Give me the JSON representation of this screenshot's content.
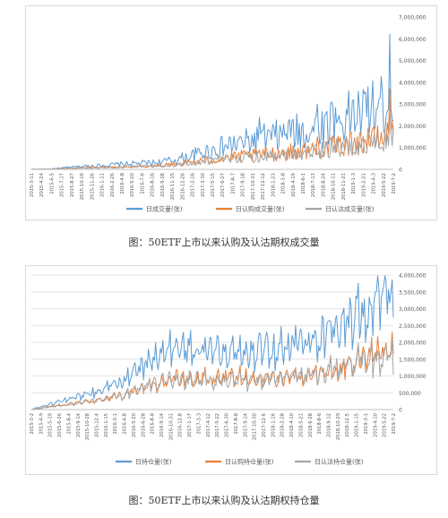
{
  "charts": [
    {
      "type": "line",
      "caption": "图：50ETF上市以来认购及认沽期权成交量",
      "x_ticks": [
        "2015-3-11",
        "2015-4-24",
        "2015-6-5",
        "2015-7-17",
        "2015-8-27",
        "2015-10-16",
        "2015-11-26",
        "2016-1-11",
        "2016-2-26",
        "2016-4-8",
        "2016-5-20",
        "2016-7-6",
        "2016-8-16",
        "2016-9-28",
        "2016-11-15",
        "2016-12-26",
        "2017-2-16",
        "2017-3-30",
        "2017-5-15",
        "2017-6-27",
        "2017-8-7",
        "2017-9-18",
        "2017-10-31",
        "2017-12-12",
        "2018-1-23",
        "2018-3-8",
        "2018-4-19",
        "2018-6-1",
        "2018-7-13",
        "2018-8-24",
        "2018-10-11",
        "2018-11-21",
        "2019-1-3",
        "2019-2-21",
        "2019-4-3",
        "2019-5-22",
        "2019-7-2"
      ],
      "y_ticks": [
        "0",
        "1,000,000",
        "2,000,000",
        "3,000,000",
        "4,000,000",
        "5,000,000",
        "6,000,000",
        "7,000,000"
      ],
      "ylim": [
        0,
        7000000
      ],
      "series": [
        {
          "name": "日成交量(张)",
          "color": "#5b9bd5",
          "anchors": [
            [
              0,
              5000
            ],
            [
              0.05,
              20000
            ],
            [
              0.1,
              80000
            ],
            [
              0.15,
              140000
            ],
            [
              0.2,
              180000
            ],
            [
              0.25,
              220000
            ],
            [
              0.3,
              260000
            ],
            [
              0.35,
              300000
            ],
            [
              0.4,
              420000
            ],
            [
              0.45,
              620000
            ],
            [
              0.5,
              850000
            ],
            [
              0.55,
              1050000
            ],
            [
              0.6,
              1200000
            ],
            [
              0.65,
              1350000
            ],
            [
              0.7,
              1500000
            ],
            [
              0.75,
              1650000
            ],
            [
              0.8,
              1850000
            ],
            [
              0.85,
              2150000
            ],
            [
              0.9,
              2350000
            ],
            [
              0.95,
              2600000
            ],
            [
              1,
              3000000
            ]
          ],
          "spikes": [
            [
              0.63,
              2400000
            ],
            [
              0.71,
              2200000
            ],
            [
              0.79,
              3000000
            ],
            [
              0.83,
              3100000
            ],
            [
              0.89,
              3200000
            ],
            [
              0.93,
              3800000
            ],
            [
              0.97,
              3500000
            ],
            [
              0.99,
              6200000
            ]
          ],
          "amp": 0.55
        },
        {
          "name": "日认购成交量(张)",
          "color": "#ed7d31",
          "anchors": [
            [
              0,
              3000
            ],
            [
              0.05,
              10000
            ],
            [
              0.1,
              40000
            ],
            [
              0.15,
              80000
            ],
            [
              0.2,
              100000
            ],
            [
              0.25,
              120000
            ],
            [
              0.3,
              140000
            ],
            [
              0.35,
              170000
            ],
            [
              0.4,
              240000
            ],
            [
              0.45,
              330000
            ],
            [
              0.5,
              420000
            ],
            [
              0.55,
              520000
            ],
            [
              0.6,
              600000
            ],
            [
              0.65,
              680000
            ],
            [
              0.7,
              740000
            ],
            [
              0.75,
              820000
            ],
            [
              0.8,
              900000
            ],
            [
              0.85,
              1050000
            ],
            [
              0.9,
              1150000
            ],
            [
              0.95,
              1300000
            ],
            [
              1,
              1500000
            ]
          ],
          "spikes": [
            [
              0.79,
              1500000
            ],
            [
              0.93,
              1900000
            ],
            [
              0.99,
              3700000
            ]
          ],
          "amp": 0.5
        },
        {
          "name": "日认沽成交量(张)",
          "color": "#a5a5a5",
          "anchors": [
            [
              0,
              2000
            ],
            [
              0.05,
              10000
            ],
            [
              0.1,
              40000
            ],
            [
              0.15,
              60000
            ],
            [
              0.2,
              80000
            ],
            [
              0.25,
              100000
            ],
            [
              0.3,
              120000
            ],
            [
              0.35,
              140000
            ],
            [
              0.4,
              190000
            ],
            [
              0.45,
              280000
            ],
            [
              0.5,
              380000
            ],
            [
              0.55,
              470000
            ],
            [
              0.6,
              540000
            ],
            [
              0.65,
              620000
            ],
            [
              0.7,
              680000
            ],
            [
              0.75,
              750000
            ],
            [
              0.8,
              820000
            ],
            [
              0.85,
              950000
            ],
            [
              0.9,
              1050000
            ],
            [
              0.95,
              1150000
            ],
            [
              1,
              1300000
            ]
          ],
          "spikes": [
            [
              0.83,
              1500000
            ],
            [
              0.93,
              1700000
            ],
            [
              0.99,
              2500000
            ]
          ],
          "amp": 0.5
        }
      ]
    },
    {
      "type": "line",
      "caption": "图：50ETF上市以来认购及认沽期权持仓量",
      "x_ticks": [
        "2015-3-2",
        "2015-4-9",
        "2015-5-19",
        "2015-6-26",
        "2015-8-4",
        "2015-9-14",
        "2015-10-28",
        "2015-12-4",
        "2016-1-15",
        "2016-3-1",
        "2016-4-8",
        "2016-5-20",
        "2016-6-28",
        "2016-8-8",
        "2016-9-14",
        "2016-10-31",
        "2016-12-8",
        "2017-1-17",
        "2017-3-3",
        "2017-4-12",
        "2017-5-22",
        "2017-6-30",
        "2017-8-8",
        "2017-9-14",
        "2017-10-30",
        "2017-12-6",
        "2018-1-16",
        "2018-2-28",
        "2018-4-10",
        "2018-5-21",
        "2018-6-28",
        "2018-8-6",
        "2018-9-12",
        "2018-10-29",
        "2018-12-5",
        "2019-1-15",
        "2019-3-1",
        "2019-4-10",
        "2019-5-22",
        "2019-7-2"
      ],
      "y_ticks": [
        "0",
        "500,000",
        "1,000,000",
        "1,500,000",
        "2,000,000",
        "2,500,000",
        "3,000,000",
        "3,500,000",
        "4,000,000"
      ],
      "ylim": [
        0,
        4000000
      ],
      "series": [
        {
          "name": "日持仓量(张)",
          "color": "#5b9bd5",
          "anchors": [
            [
              0,
              5000
            ],
            [
              0.05,
              150000
            ],
            [
              0.1,
              300000
            ],
            [
              0.15,
              450000
            ],
            [
              0.2,
              600000
            ],
            [
              0.25,
              850000
            ],
            [
              0.3,
              1200000
            ],
            [
              0.35,
              1550000
            ],
            [
              0.4,
              1800000
            ],
            [
              0.45,
              1750000
            ],
            [
              0.5,
              1750000
            ],
            [
              0.55,
              1800000
            ],
            [
              0.6,
              1700000
            ],
            [
              0.65,
              1800000
            ],
            [
              0.7,
              1850000
            ],
            [
              0.75,
              1950000
            ],
            [
              0.8,
              2100000
            ],
            [
              0.85,
              2400000
            ],
            [
              0.9,
              2750000
            ],
            [
              0.95,
              3100000
            ],
            [
              1,
              3300000
            ]
          ],
          "spikes": [
            [
              0.98,
              3600000
            ]
          ],
          "amp": 0.18
        },
        {
          "name": "日认购持仓量(张)",
          "color": "#ed7d31",
          "anchors": [
            [
              0,
              3000
            ],
            [
              0.05,
              80000
            ],
            [
              0.1,
              160000
            ],
            [
              0.15,
              230000
            ],
            [
              0.2,
              300000
            ],
            [
              0.25,
              430000
            ],
            [
              0.3,
              600000
            ],
            [
              0.35,
              760000
            ],
            [
              0.4,
              880000
            ],
            [
              0.45,
              880000
            ],
            [
              0.5,
              900000
            ],
            [
              0.55,
              950000
            ],
            [
              0.6,
              880000
            ],
            [
              0.65,
              900000
            ],
            [
              0.7,
              920000
            ],
            [
              0.75,
              950000
            ],
            [
              0.8,
              1050000
            ],
            [
              0.85,
              1200000
            ],
            [
              0.9,
              1400000
            ],
            [
              0.95,
              1650000
            ],
            [
              1,
              1700000
            ]
          ],
          "spikes": [
            [
              0.965,
              2100000
            ]
          ],
          "amp": 0.2
        },
        {
          "name": "日认沽持仓量(张)",
          "color": "#a5a5a5",
          "anchors": [
            [
              0,
              2000
            ],
            [
              0.05,
              70000
            ],
            [
              0.1,
              140000
            ],
            [
              0.15,
              210000
            ],
            [
              0.2,
              300000
            ],
            [
              0.25,
              420000
            ],
            [
              0.3,
              600000
            ],
            [
              0.35,
              780000
            ],
            [
              0.4,
              900000
            ],
            [
              0.45,
              880000
            ],
            [
              0.5,
              850000
            ],
            [
              0.55,
              850000
            ],
            [
              0.6,
              820000
            ],
            [
              0.65,
              880000
            ],
            [
              0.7,
              920000
            ],
            [
              0.75,
              980000
            ],
            [
              0.8,
              1050000
            ],
            [
              0.85,
              1200000
            ],
            [
              0.9,
              1380000
            ],
            [
              0.95,
              1500000
            ],
            [
              1,
              1600000
            ]
          ],
          "spikes": [
            [
              0.98,
              1900000
            ]
          ],
          "amp": 0.2
        }
      ]
    }
  ],
  "chart_data": [
    {
      "type": "line",
      "title": "",
      "xlabel": "",
      "ylabel": "",
      "x_range": [
        "2015-3-11",
        "2019-7-2"
      ],
      "ylim": [
        0,
        7000000
      ],
      "y_axis_side": "right",
      "grid": false,
      "legend": "bottom",
      "series": [
        {
          "name": "日成交量(张)",
          "peak": 6200000,
          "end": 3000000
        },
        {
          "name": "日认购成交量(张)",
          "peak": 3700000,
          "end": 1500000
        },
        {
          "name": "日认沽成交量(张)",
          "peak": 2500000,
          "end": 1300000
        }
      ]
    },
    {
      "type": "line",
      "title": "",
      "xlabel": "",
      "ylabel": "",
      "x_range": [
        "2015-3-2",
        "2019-7-2"
      ],
      "ylim": [
        0,
        4000000
      ],
      "y_axis_side": "right",
      "grid": true,
      "legend": "bottom",
      "series": [
        {
          "name": "日持仓量(张)",
          "peak": 3600000,
          "end": 3300000
        },
        {
          "name": "日认购持仓量(张)",
          "peak": 2100000,
          "end": 1700000
        },
        {
          "name": "日认沽持仓量(张)",
          "peak": 1900000,
          "end": 1600000
        }
      ]
    }
  ]
}
